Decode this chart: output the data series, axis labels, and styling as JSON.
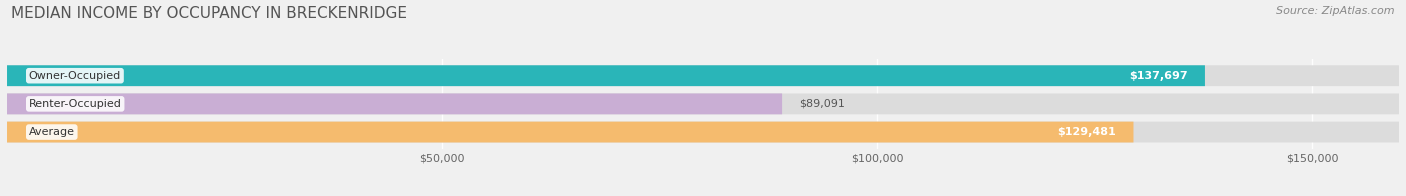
{
  "title": "MEDIAN INCOME BY OCCUPANCY IN BRECKENRIDGE",
  "source": "Source: ZipAtlas.com",
  "categories": [
    "Owner-Occupied",
    "Renter-Occupied",
    "Average"
  ],
  "values": [
    137697,
    89091,
    129481
  ],
  "bar_colors": [
    "#2ab5b8",
    "#c9aed4",
    "#f5bb6e"
  ],
  "bar_bg_color": "#dcdcdc",
  "value_labels": [
    "$137,697",
    "$89,091",
    "$129,481"
  ],
  "xlim": [
    0,
    160000
  ],
  "xticks": [
    50000,
    100000,
    150000
  ],
  "xtick_labels": [
    "$50,000",
    "$100,000",
    "$150,000"
  ],
  "title_fontsize": 11,
  "source_fontsize": 8,
  "label_fontsize": 8,
  "tick_fontsize": 8,
  "bar_height": 0.58,
  "figsize": [
    14.06,
    1.96
  ],
  "dpi": 100,
  "bg_color": "#f0f0f0"
}
